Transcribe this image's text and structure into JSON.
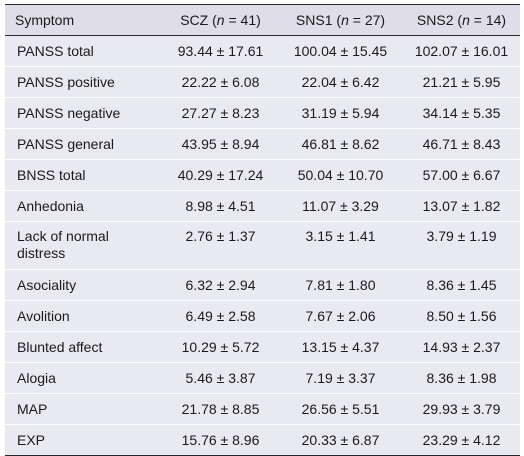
{
  "header": {
    "symptom": "Symptom",
    "groups": [
      {
        "name": "SCZ",
        "n_label": "n",
        "n_value": "41"
      },
      {
        "name": "SNS1",
        "n_label": "n",
        "n_value": "27"
      },
      {
        "name": "SNS2",
        "n_label": "n",
        "n_value": "14"
      }
    ]
  },
  "rows": [
    {
      "symptom": "PANSS total",
      "values": [
        "93.44 ± 17.61",
        "100.04 ± 15.45",
        "102.07 ± 16.01"
      ]
    },
    {
      "symptom": "PANSS positive",
      "values": [
        "22.22 ± 6.08",
        "22.04 ± 6.42",
        "21.21 ± 5.95"
      ]
    },
    {
      "symptom": "PANSS negative",
      "values": [
        "27.27 ± 8.23",
        "31.19 ± 5.94",
        "34.14 ± 5.35"
      ]
    },
    {
      "symptom": "PANSS general",
      "values": [
        "43.95 ± 8.94",
        "46.81 ± 8.62",
        "46.71 ± 8.43"
      ]
    },
    {
      "symptom": "BNSS total",
      "values": [
        "40.29 ± 17.24",
        "50.04 ± 10.70",
        "57.00 ± 6.67"
      ]
    },
    {
      "symptom": "Anhedonia",
      "values": [
        "8.98 ± 4.51",
        "11.07 ± 3.29",
        "13.07 ± 1.82"
      ]
    },
    {
      "symptom": "Lack of normal distress",
      "symptom_line1": "Lack of normal",
      "symptom_line2": "distress",
      "values": [
        "2.76 ± 1.37",
        "3.15 ± 1.41",
        "3.79 ± 1.19"
      ]
    },
    {
      "symptom": "Asociality",
      "values": [
        "6.32 ± 2.94",
        "7.81 ± 1.80",
        "8.36 ± 1.45"
      ]
    },
    {
      "symptom": "Avolition",
      "values": [
        "6.49 ± 2.58",
        "7.67 ± 2.06",
        "8.50 ± 1.56"
      ]
    },
    {
      "symptom": "Blunted affect",
      "values": [
        "10.29 ± 5.72",
        "13.15 ± 4.37",
        "14.93 ± 2.37"
      ]
    },
    {
      "symptom": "Alogia",
      "values": [
        "5.46 ± 3.87",
        "7.19 ± 3.37",
        "8.36 ± 1.98"
      ]
    },
    {
      "symptom": "MAP",
      "values": [
        "21.78 ± 8.85",
        "26.56 ± 5.51",
        "29.93 ± 3.79"
      ]
    },
    {
      "symptom": "EXP",
      "values": [
        "15.76 ± 8.96",
        "20.33 ± 6.87",
        "23.29 ± 4.12"
      ]
    }
  ]
}
